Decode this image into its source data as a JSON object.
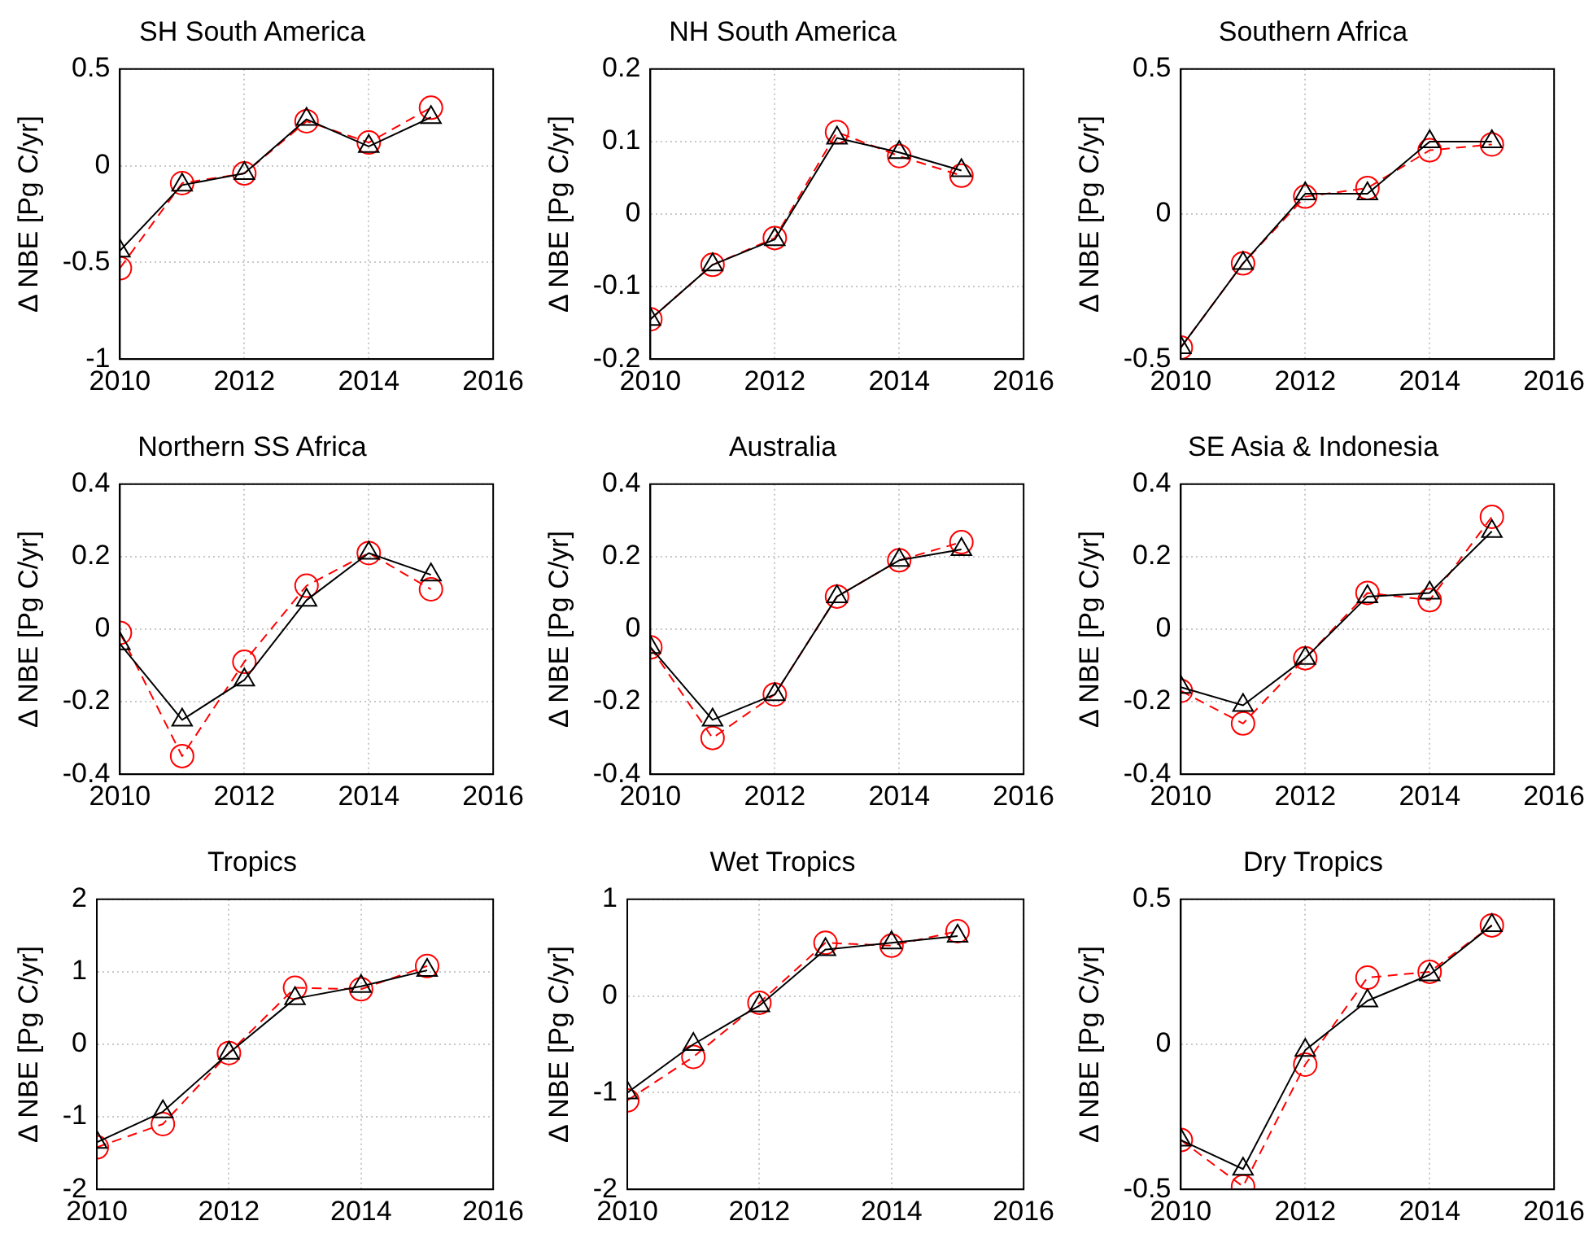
{
  "chart_data": [
    {
      "type": "line",
      "title": "SH South America",
      "ylabel": "Δ NBE [Pg C/yr]",
      "x": [
        2010,
        2011,
        2012,
        2013,
        2014,
        2015
      ],
      "xlim": [
        2010,
        2016
      ],
      "xticks": [
        2010,
        2012,
        2014,
        2016
      ],
      "ylim": [
        -1,
        0.5
      ],
      "yticks": [
        -1,
        -0.5,
        0,
        0.5
      ],
      "grid": true,
      "series": [
        {
          "color": "#000000",
          "marker": "triangle",
          "line_style": "solid",
          "values": [
            -0.44,
            -0.1,
            -0.04,
            0.24,
            0.1,
            0.25
          ]
        },
        {
          "color": "#ff0000",
          "marker": "circle",
          "line_style": "dashed",
          "values": [
            -0.53,
            -0.09,
            -0.04,
            0.23,
            0.12,
            0.3
          ]
        }
      ]
    },
    {
      "type": "line",
      "title": "NH South America",
      "ylabel": "Δ NBE [Pg C/yr]",
      "x": [
        2010,
        2011,
        2012,
        2013,
        2014,
        2015
      ],
      "xlim": [
        2010,
        2016
      ],
      "xticks": [
        2010,
        2012,
        2014,
        2016
      ],
      "ylim": [
        -0.2,
        0.2
      ],
      "yticks": [
        -0.2,
        -0.1,
        0,
        0.1,
        0.2
      ],
      "grid": true,
      "series": [
        {
          "color": "#000000",
          "marker": "triangle",
          "line_style": "solid",
          "values": [
            -0.145,
            -0.07,
            -0.035,
            0.105,
            0.085,
            0.06
          ]
        },
        {
          "color": "#ff0000",
          "marker": "circle",
          "line_style": "dashed",
          "values": [
            -0.145,
            -0.07,
            -0.033,
            0.113,
            0.08,
            0.053
          ]
        }
      ]
    },
    {
      "type": "line",
      "title": "Southern Africa",
      "ylabel": "Δ NBE [Pg C/yr]",
      "x": [
        2010,
        2011,
        2012,
        2013,
        2014,
        2015
      ],
      "xlim": [
        2010,
        2016
      ],
      "xticks": [
        2010,
        2012,
        2014,
        2016
      ],
      "ylim": [
        -0.5,
        0.5
      ],
      "yticks": [
        -0.5,
        0,
        0.5
      ],
      "grid": true,
      "series": [
        {
          "color": "#000000",
          "marker": "triangle",
          "line_style": "solid",
          "values": [
            -0.46,
            -0.17,
            0.07,
            0.07,
            0.25,
            0.25
          ]
        },
        {
          "color": "#ff0000",
          "marker": "circle",
          "line_style": "dashed",
          "values": [
            -0.46,
            -0.17,
            0.06,
            0.09,
            0.22,
            0.24
          ]
        }
      ]
    },
    {
      "type": "line",
      "title": "Northern SS Africa",
      "ylabel": "Δ NBE [Pg C/yr]",
      "x": [
        2010,
        2011,
        2012,
        2013,
        2014,
        2015
      ],
      "xlim": [
        2010,
        2016
      ],
      "xticks": [
        2010,
        2012,
        2014,
        2016
      ],
      "ylim": [
        -0.4,
        0.4
      ],
      "yticks": [
        -0.4,
        -0.2,
        0,
        0.2,
        0.4
      ],
      "grid": true,
      "series": [
        {
          "color": "#000000",
          "marker": "triangle",
          "line_style": "solid",
          "values": [
            -0.04,
            -0.25,
            -0.14,
            0.08,
            0.21,
            0.15
          ]
        },
        {
          "color": "#ff0000",
          "marker": "circle",
          "line_style": "dashed",
          "values": [
            -0.01,
            -0.35,
            -0.09,
            0.12,
            0.21,
            0.11
          ]
        }
      ]
    },
    {
      "type": "line",
      "title": "Australia",
      "ylabel": "Δ NBE [Pg C/yr]",
      "x": [
        2010,
        2011,
        2012,
        2013,
        2014,
        2015
      ],
      "xlim": [
        2010,
        2016
      ],
      "xticks": [
        2010,
        2012,
        2014,
        2016
      ],
      "ylim": [
        -0.4,
        0.4
      ],
      "yticks": [
        -0.4,
        -0.2,
        0,
        0.2,
        0.4
      ],
      "grid": true,
      "series": [
        {
          "color": "#000000",
          "marker": "triangle",
          "line_style": "solid",
          "values": [
            -0.05,
            -0.25,
            -0.18,
            0.09,
            0.19,
            0.22
          ]
        },
        {
          "color": "#ff0000",
          "marker": "circle",
          "line_style": "dashed",
          "values": [
            -0.05,
            -0.3,
            -0.18,
            0.09,
            0.19,
            0.24
          ]
        }
      ]
    },
    {
      "type": "line",
      "title": "SE Asia & Indonesia",
      "ylabel": "Δ NBE [Pg C/yr]",
      "x": [
        2010,
        2011,
        2012,
        2013,
        2014,
        2015
      ],
      "xlim": [
        2010,
        2016
      ],
      "xticks": [
        2010,
        2012,
        2014,
        2016
      ],
      "ylim": [
        -0.4,
        0.4
      ],
      "yticks": [
        -0.4,
        -0.2,
        0,
        0.2,
        0.4
      ],
      "grid": true,
      "series": [
        {
          "color": "#000000",
          "marker": "triangle",
          "line_style": "solid",
          "values": [
            -0.16,
            -0.21,
            -0.08,
            0.09,
            0.1,
            0.27
          ]
        },
        {
          "color": "#ff0000",
          "marker": "circle",
          "line_style": "dashed",
          "values": [
            -0.17,
            -0.26,
            -0.08,
            0.1,
            0.08,
            0.31
          ]
        }
      ]
    },
    {
      "type": "line",
      "title": "Tropics",
      "ylabel": "Δ NBE [Pg C/yr]",
      "x": [
        2010,
        2011,
        2012,
        2013,
        2014,
        2015
      ],
      "xlim": [
        2010,
        2016
      ],
      "xticks": [
        2010,
        2012,
        2014,
        2016
      ],
      "ylim": [
        -2,
        2
      ],
      "yticks": [
        -2,
        -1,
        0,
        1,
        2
      ],
      "grid": true,
      "series": [
        {
          "color": "#000000",
          "marker": "triangle",
          "line_style": "solid",
          "values": [
            -1.35,
            -0.93,
            -0.12,
            0.63,
            0.8,
            1.02
          ]
        },
        {
          "color": "#ff0000",
          "marker": "circle",
          "line_style": "dashed",
          "values": [
            -1.42,
            -1.1,
            -0.12,
            0.78,
            0.76,
            1.08
          ]
        }
      ]
    },
    {
      "type": "line",
      "title": "Wet Tropics",
      "ylabel": "Δ NBE [Pg C/yr]",
      "x": [
        2010,
        2011,
        2012,
        2013,
        2014,
        2015
      ],
      "xlim": [
        2010,
        2016
      ],
      "xticks": [
        2010,
        2012,
        2014,
        2016
      ],
      "ylim": [
        -2,
        1
      ],
      "yticks": [
        -2,
        -1,
        0,
        1
      ],
      "grid": true,
      "series": [
        {
          "color": "#000000",
          "marker": "triangle",
          "line_style": "solid",
          "values": [
            -1.0,
            -0.5,
            -0.1,
            0.48,
            0.55,
            0.62
          ]
        },
        {
          "color": "#ff0000",
          "marker": "circle",
          "line_style": "dashed",
          "values": [
            -1.08,
            -0.63,
            -0.07,
            0.55,
            0.52,
            0.67
          ]
        }
      ]
    },
    {
      "type": "line",
      "title": "Dry Tropics",
      "ylabel": "Δ NBE [Pg C/yr]",
      "x": [
        2010,
        2011,
        2012,
        2013,
        2014,
        2015
      ],
      "xlim": [
        2010,
        2016
      ],
      "xticks": [
        2010,
        2012,
        2014,
        2016
      ],
      "ylim": [
        -0.5,
        0.5
      ],
      "yticks": [
        -0.5,
        0,
        0.5
      ],
      "grid": true,
      "series": [
        {
          "color": "#000000",
          "marker": "triangle",
          "line_style": "solid",
          "values": [
            -0.33,
            -0.43,
            -0.02,
            0.15,
            0.24,
            0.41
          ]
        },
        {
          "color": "#ff0000",
          "marker": "circle",
          "line_style": "dashed",
          "values": [
            -0.33,
            -0.49,
            -0.07,
            0.23,
            0.25,
            0.41
          ]
        }
      ]
    }
  ]
}
